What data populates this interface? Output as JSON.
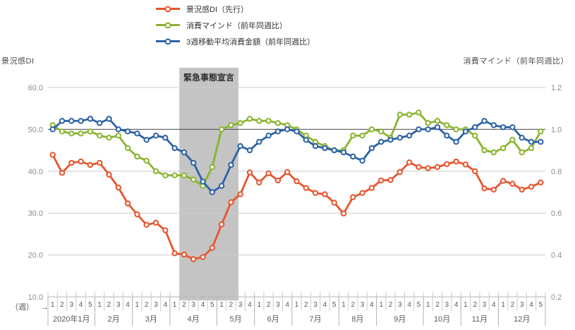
{
  "left_axis_title": "景況感DI",
  "right_axis_title": "消費マインド（前年同週比）",
  "week_unit_label": "（週）",
  "week_unit_arrow": "→",
  "annotation": {
    "label": "緊急事態宣言",
    "start_cell": 14,
    "end_cell": 20.3
  },
  "colors": {
    "sentiment_di": "#e8542c",
    "consumer_mind": "#8ab42e",
    "spending_avg": "#2b62a6",
    "grid": "#cccccc",
    "grid_emphasis": "#4a4a4a",
    "band": "#c4c4c4",
    "axis_tick_text": "#8c8c8c",
    "week_text": "#595959",
    "axis_line": "#b3b3b3"
  },
  "chart_data": {
    "type": "line",
    "legend_position": "top",
    "grid": true,
    "left_axis": {
      "label": "景況感DI",
      "min": 10,
      "max": 60,
      "tick_labels": [
        "60.0",
        "50.0",
        "40.0",
        "30.0",
        "20.0",
        "10.0"
      ],
      "tick_values": [
        60,
        50,
        40,
        30,
        20,
        10
      ]
    },
    "right_axis": {
      "label": "消費マインド（前年同週比）",
      "min": 0.2,
      "max": 1.2,
      "tick_labels": [
        "1.2",
        "1.0",
        "0.8",
        "0.6",
        "0.4",
        "0.2"
      ],
      "tick_values": [
        1.2,
        1.0,
        0.8,
        0.6,
        0.4,
        0.2
      ],
      "emphasized_grid_value": 1.0
    },
    "x_axis": {
      "unit": "週",
      "months": [
        {
          "label": "2020年1月",
          "weeks": 5
        },
        {
          "label": "2月",
          "weeks": 4
        },
        {
          "label": "3月",
          "weeks": 4
        },
        {
          "label": "4月",
          "weeks": 5
        },
        {
          "label": "5月",
          "weeks": 4
        },
        {
          "label": "6月",
          "weeks": 4
        },
        {
          "label": "7月",
          "weeks": 5
        },
        {
          "label": "8月",
          "weeks": 4
        },
        {
          "label": "9月",
          "weeks": 5
        },
        {
          "label": "10月",
          "weeks": 4
        },
        {
          "label": "11月",
          "weeks": 4
        },
        {
          "label": "12月",
          "weeks": 5
        }
      ]
    },
    "annotation_band": {
      "label": "緊急事態宣言",
      "covers": "2020年4月第1週〜5月第2週"
    },
    "series": [
      {
        "key": "sentiment_di",
        "name": "景況感DI（先行）",
        "axis": "left",
        "color": "#e8542c",
        "values": [
          43.9,
          39.6,
          42.0,
          42.3,
          41.5,
          42.0,
          39.2,
          36.1,
          32.3,
          29.7,
          27.2,
          27.7,
          25.9,
          20.4,
          20.1,
          19.0,
          19.5,
          21.7,
          27.3,
          32.6,
          34.5,
          39.7,
          37.3,
          39.5,
          37.8,
          39.8,
          37.6,
          36.0,
          34.8,
          34.5,
          32.5,
          29.9,
          33.8,
          34.8,
          36.0,
          37.8,
          37.9,
          39.8,
          42.1,
          41.0,
          40.7,
          41.0,
          41.7,
          42.3,
          41.6,
          40.0,
          35.9,
          35.6,
          37.7,
          37.0,
          35.6,
          36.3,
          37.3
        ]
      },
      {
        "key": "consumer_mind",
        "name": "消費マインド（前年同週比）",
        "axis": "right",
        "color": "#8ab42e",
        "values": [
          1.02,
          0.99,
          0.98,
          0.98,
          0.99,
          0.97,
          0.96,
          0.97,
          0.91,
          0.87,
          0.85,
          0.8,
          0.78,
          0.78,
          0.78,
          0.76,
          0.73,
          0.82,
          1.0,
          1.02,
          1.03,
          1.05,
          1.04,
          1.04,
          1.03,
          1.02,
          1.0,
          0.97,
          0.94,
          0.92,
          0.9,
          0.9,
          0.97,
          0.97,
          1.0,
          0.99,
          0.96,
          1.07,
          1.07,
          1.08,
          1.03,
          1.04,
          1.02,
          1.0,
          1.0,
          0.97,
          0.9,
          0.89,
          0.91,
          0.95,
          0.89,
          0.91,
          0.99
        ]
      },
      {
        "key": "spending_avg",
        "name": "3週移動平均消費金額（前年同週比）",
        "axis": "right",
        "color": "#2b62a6",
        "values": [
          1.0,
          1.04,
          1.04,
          1.04,
          1.05,
          1.03,
          1.05,
          1.0,
          0.99,
          0.98,
          0.95,
          0.97,
          0.96,
          0.91,
          0.89,
          0.84,
          0.75,
          0.7,
          0.73,
          0.83,
          0.92,
          0.9,
          0.94,
          0.97,
          0.99,
          1.0,
          0.99,
          0.95,
          0.92,
          0.91,
          0.9,
          0.89,
          0.87,
          0.85,
          0.91,
          0.94,
          0.95,
          0.96,
          0.97,
          1.0,
          1.0,
          1.01,
          0.97,
          0.94,
          0.99,
          1.01,
          1.04,
          1.02,
          1.01,
          1.01,
          0.96,
          0.94,
          0.94
        ]
      }
    ]
  }
}
